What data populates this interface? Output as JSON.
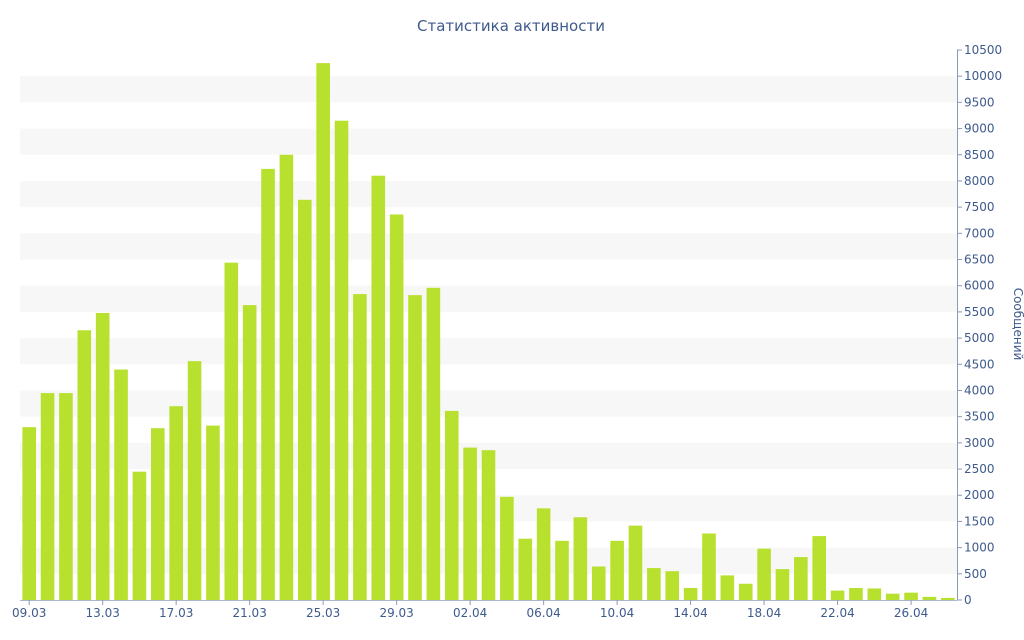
{
  "chart_data": {
    "type": "bar",
    "title": "Статистика активности",
    "xlabel": "",
    "ylabel": "Сообщений",
    "ylim": [
      0,
      10500
    ],
    "y_axis_side": "right",
    "y_ticks": [
      0,
      500,
      1000,
      1500,
      2000,
      2500,
      3000,
      3500,
      4000,
      4500,
      5000,
      5500,
      6000,
      6500,
      7000,
      7500,
      8000,
      8500,
      9000,
      9500,
      10000,
      10500
    ],
    "x_tick_labels": [
      "09.03",
      "13.03",
      "17.03",
      "21.03",
      "25.03",
      "29.03",
      "02.04",
      "06.04",
      "10.04",
      "14.04",
      "18.04",
      "22.04",
      "26.04"
    ],
    "x_tick_every": 4,
    "grid": "alternating horizontal bands",
    "bar_color": "#b8e02f",
    "band_color": "#f7f7f7",
    "text_color": "#3f5a8c",
    "values": [
      3300,
      3950,
      3950,
      5150,
      5480,
      4400,
      2450,
      3280,
      3700,
      4560,
      3330,
      6440,
      5630,
      8230,
      8500,
      7640,
      10250,
      9150,
      5840,
      8100,
      7360,
      5820,
      5960,
      3610,
      2910,
      2860,
      1970,
      1170,
      1750,
      1130,
      1580,
      640,
      1130,
      1420,
      610,
      550,
      230,
      1270,
      470,
      310,
      980,
      590,
      820,
      1220,
      180,
      230,
      220,
      120,
      140,
      60,
      40
    ]
  }
}
